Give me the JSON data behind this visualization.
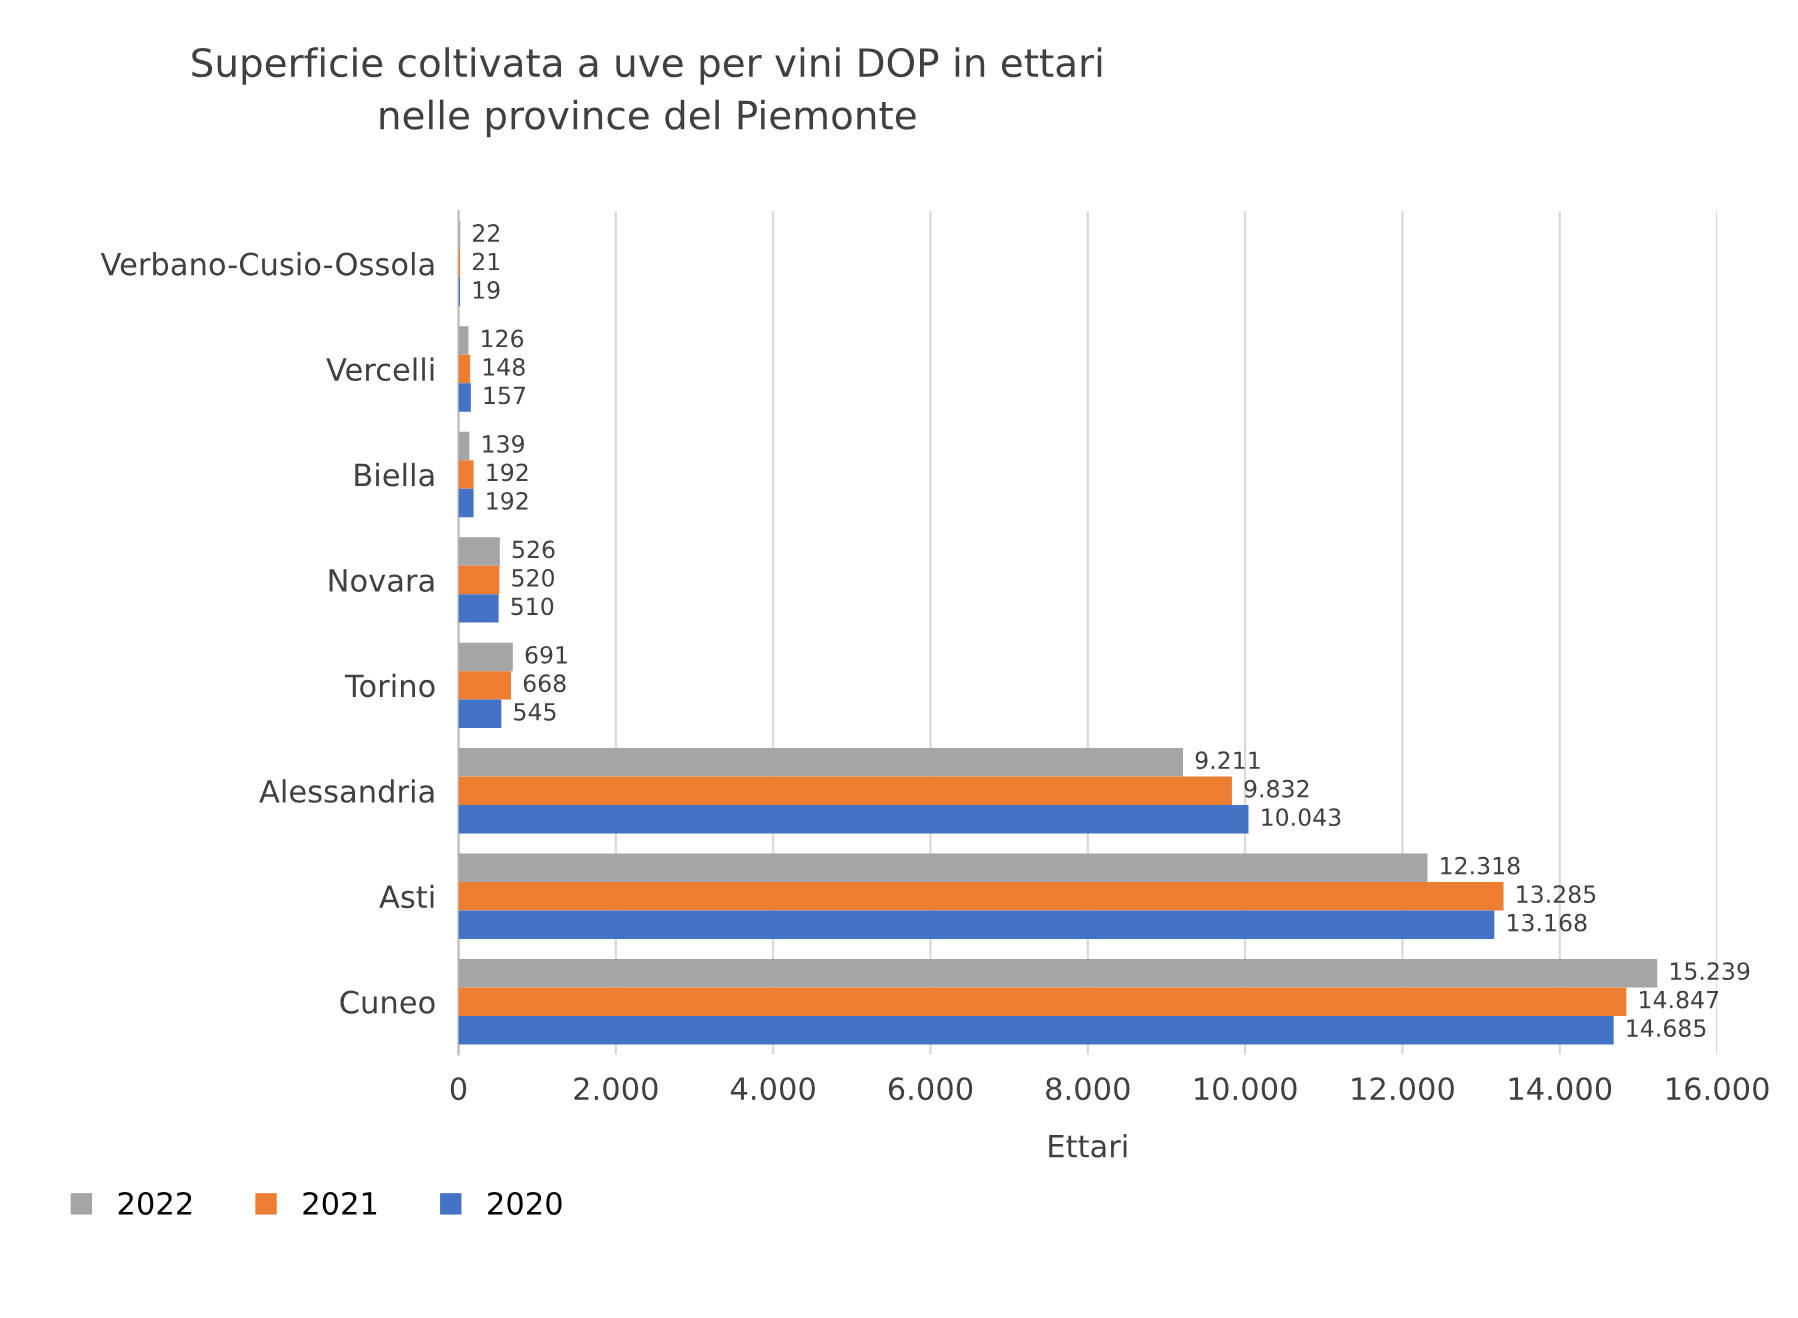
{
  "chart_data": {
    "type": "bar",
    "orientation": "horizontal",
    "title": "Superficie coltivata a uve per vini DOP in ettari\nnelle province del Piemonte",
    "xlabel": "Ettari",
    "categories": [
      "Verbano-Cusio-Ossola",
      "Vercelli",
      "Biella",
      "Novara",
      "Torino",
      "Alessandria",
      "Asti",
      "Cuneo"
    ],
    "series": [
      {
        "name": "2022",
        "color": "#a5a5a5",
        "values": [
          22,
          126,
          139,
          526,
          691,
          9211,
          12318,
          15239
        ],
        "value_labels": [
          "22",
          "126",
          "139",
          "526",
          "691",
          "9.211",
          "12.318",
          "15.239"
        ]
      },
      {
        "name": "2021",
        "color": "#ed7d31",
        "values": [
          21,
          148,
          192,
          520,
          668,
          9832,
          13285,
          14847
        ],
        "value_labels": [
          "21",
          "148",
          "192",
          "520",
          "668",
          "9.832",
          "13.285",
          "14.847"
        ]
      },
      {
        "name": "2020",
        "color": "#4472c4",
        "values": [
          19,
          157,
          192,
          510,
          545,
          10043,
          13168,
          14685
        ],
        "value_labels": [
          "19",
          "157",
          "192",
          "510",
          "545",
          "10.043",
          "13.168",
          "14.685"
        ]
      }
    ],
    "xlim": [
      0,
      16000
    ],
    "xticks": [
      0,
      {
        "value": 2000,
        "label": "2.000"
      },
      {
        "value": 4000,
        "label": "4.000"
      },
      {
        "value": 6000,
        "label": "6.000"
      },
      {
        "value": 8000,
        "label": "8.000"
      },
      {
        "value": 10000,
        "label": "10.000"
      },
      {
        "value": 12000,
        "label": "12.000"
      },
      {
        "value": 14000,
        "label": "14.000"
      },
      {
        "value": 16000,
        "label": "16.000"
      }
    ],
    "grid": "x",
    "legend": "bottom left"
  }
}
